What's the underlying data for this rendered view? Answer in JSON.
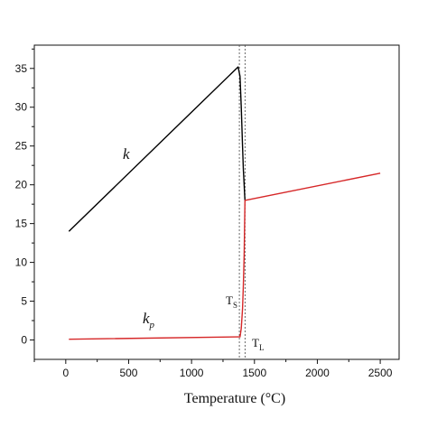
{
  "chart_data": {
    "type": "line",
    "xlabel": "Temperature (°C)",
    "xlim": [
      -250,
      2650
    ],
    "ylim": [
      -2.5,
      38
    ],
    "xticks": [
      0,
      500,
      1000,
      1500,
      2000,
      2500
    ],
    "yticks": [
      0,
      5,
      10,
      15,
      20,
      25,
      30,
      35
    ],
    "grid": false,
    "series": [
      {
        "name": "k",
        "color": "#000000",
        "x": [
          25,
          1370,
          1385,
          1395,
          1405,
          1412,
          1418,
          1422,
          1425
        ],
        "y": [
          14,
          35.2,
          34,
          30,
          25,
          22,
          20,
          18.8,
          18
        ]
      },
      {
        "name": "kp",
        "color": "#d62728",
        "x": [
          25,
          1370,
          1385,
          1395,
          1405,
          1412,
          1418,
          1425,
          2500
        ],
        "y": [
          0.1,
          0.4,
          0.4,
          1.5,
          4,
          7,
          11,
          18,
          21.5
        ]
      }
    ],
    "annotations": {
      "k_label": "k",
      "kp_label": "k",
      "kp_sub": "p",
      "ts_label": "T",
      "ts_sub": "S",
      "tl_label": "T",
      "tl_sub": "L"
    },
    "vlines": [
      {
        "name": "TS",
        "x": 1380
      },
      {
        "name": "TL",
        "x": 1425
      }
    ]
  }
}
